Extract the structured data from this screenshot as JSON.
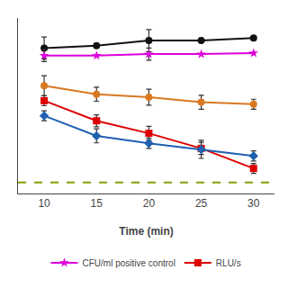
{
  "chart_data": {
    "type": "line",
    "x_label": "Time (min)",
    "x": [
      10,
      15,
      20,
      25,
      30
    ],
    "xlim": [
      7.5,
      32
    ],
    "xticks": [
      10,
      15,
      20,
      25,
      30
    ],
    "ylim": [
      4.4,
      7.9
    ],
    "tick_labels": "x",
    "grid": false,
    "legend": "bottom",
    "series": [
      {
        "color": "#111111",
        "marker": "circle",
        "values": [
          7.3,
          7.35,
          7.45,
          7.45,
          7.5
        ],
        "yerr": [
          0.22,
          0.0,
          0.22,
          0.0,
          0.0
        ]
      },
      {
        "name": "CFU/ml positive control",
        "color": "#dd00dd",
        "marker": "star",
        "values": [
          7.15,
          7.15,
          7.18,
          7.18,
          7.2
        ],
        "yerr": [
          0.12,
          0.0,
          0.12,
          0.0,
          0.0
        ]
      },
      {
        "color": "#d97820",
        "marker": "circle",
        "values": [
          6.55,
          6.38,
          6.32,
          6.22,
          6.18
        ],
        "yerr": [
          0.2,
          0.14,
          0.16,
          0.14,
          0.1
        ]
      },
      {
        "name": "RLU/s",
        "color": "#dd0000",
        "marker": "square",
        "values": [
          6.25,
          5.85,
          5.6,
          5.3,
          4.9
        ],
        "yerr": [
          0.1,
          0.12,
          0.14,
          0.12,
          0.1
        ]
      },
      {
        "color": "#2060b0",
        "marker": "diamond",
        "values": [
          5.95,
          5.55,
          5.4,
          5.28,
          5.15
        ],
        "yerr": [
          0.1,
          0.14,
          0.1,
          0.18,
          0.1
        ]
      }
    ],
    "reference_lines": [
      {
        "y": 4.62,
        "color": "#8b9b00",
        "line_style": "dashed"
      }
    ]
  }
}
